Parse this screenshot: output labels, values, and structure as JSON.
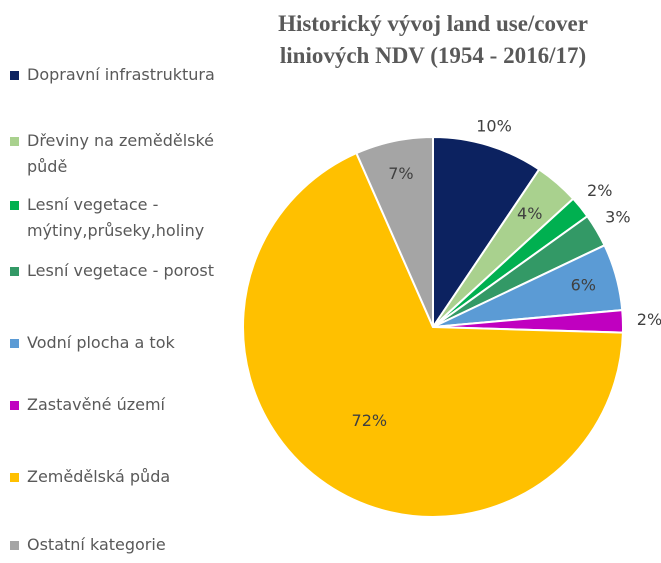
{
  "chart_data": {
    "type": "pie",
    "title": "Historický vývoj land use/cover liniových NDV (1954 - 2016/17)",
    "categories": [
      "Dopravní infrastruktura",
      "Dřeviny na zemědělské půdě",
      "Lesní vegetace - mýtiny,průseky,holiny",
      "Lesní vegetace - porost",
      "Vodní plocha a tok",
      "Zastavěné území",
      "Zemědělská půda",
      "Ostatní kategorie"
    ],
    "values": [
      10,
      4,
      2,
      3,
      6,
      2,
      72,
      7
    ],
    "value_labels": [
      "10%",
      "4%",
      "2%",
      "3%",
      "6%",
      "2%",
      "72%",
      "7%"
    ],
    "colors": [
      "#0c2260",
      "#a9d18e",
      "#00b050",
      "#339966",
      "#5b9bd5",
      "#c000c0",
      "#ffc000",
      "#a5a5a5"
    ],
    "legend": "left"
  }
}
